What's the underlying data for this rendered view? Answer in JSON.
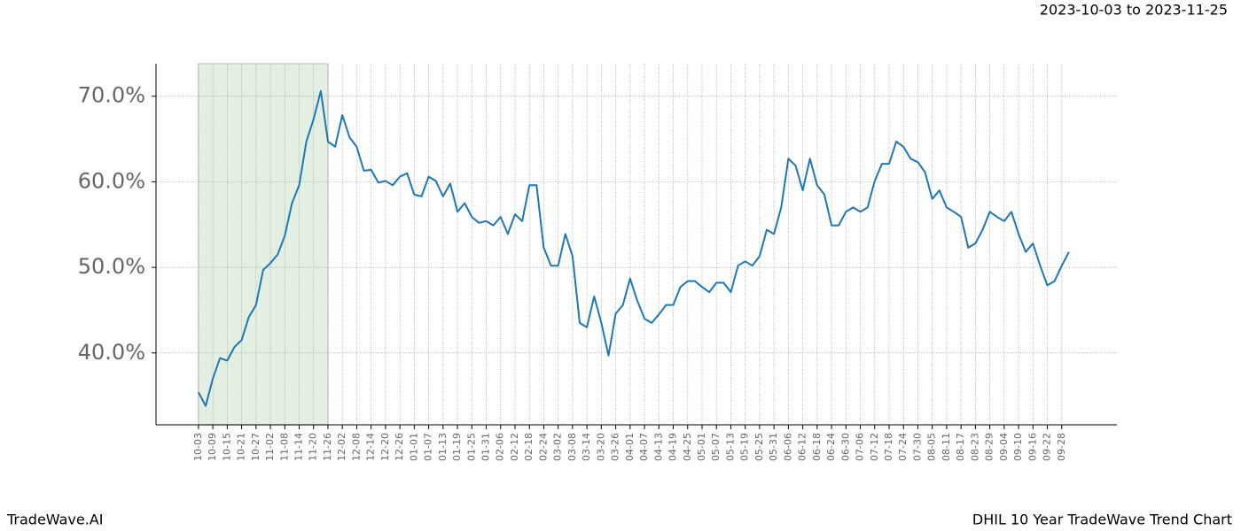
{
  "chart_data": {
    "type": "line",
    "title": "DHIL 10 Year TradeWave Trend Chart",
    "subtitle": "2023-10-03 to 2023-11-25",
    "brand": "TradeWave.AI",
    "color": "#1f77b4",
    "highlight_range": [
      0,
      54
    ],
    "highlight_color": "#e3f0e1",
    "grid": true,
    "xlim": [
      -17.7,
      383
    ],
    "ylim": [
      31.6,
      73.8
    ],
    "yticks": [
      {
        "value": 40,
        "label": "40.0%"
      },
      {
        "value": 50,
        "label": "50.0%"
      },
      {
        "value": 60,
        "label": "60.0%"
      },
      {
        "value": 70,
        "label": "70.0%"
      }
    ],
    "xticks": [
      {
        "value": 0,
        "label": "10-03"
      },
      {
        "value": 6,
        "label": "10-09"
      },
      {
        "value": 12,
        "label": "10-15"
      },
      {
        "value": 18,
        "label": "10-21"
      },
      {
        "value": 24,
        "label": "10-27"
      },
      {
        "value": 30,
        "label": "11-02"
      },
      {
        "value": 36,
        "label": "11-08"
      },
      {
        "value": 42,
        "label": "11-14"
      },
      {
        "value": 48,
        "label": "11-20"
      },
      {
        "value": 54,
        "label": "11-26"
      },
      {
        "value": 60,
        "label": "12-02"
      },
      {
        "value": 66,
        "label": "12-08"
      },
      {
        "value": 72,
        "label": "12-14"
      },
      {
        "value": 78,
        "label": "12-20"
      },
      {
        "value": 84,
        "label": "12-26"
      },
      {
        "value": 90,
        "label": "01-01"
      },
      {
        "value": 96,
        "label": "01-07"
      },
      {
        "value": 102,
        "label": "01-13"
      },
      {
        "value": 108,
        "label": "01-19"
      },
      {
        "value": 114,
        "label": "01-25"
      },
      {
        "value": 120,
        "label": "01-31"
      },
      {
        "value": 126,
        "label": "02-06"
      },
      {
        "value": 132,
        "label": "02-12"
      },
      {
        "value": 138,
        "label": "02-18"
      },
      {
        "value": 144,
        "label": "02-24"
      },
      {
        "value": 150,
        "label": "03-02"
      },
      {
        "value": 156,
        "label": "03-08"
      },
      {
        "value": 162,
        "label": "03-14"
      },
      {
        "value": 168,
        "label": "03-20"
      },
      {
        "value": 174,
        "label": "03-26"
      },
      {
        "value": 180,
        "label": "04-01"
      },
      {
        "value": 186,
        "label": "04-07"
      },
      {
        "value": 192,
        "label": "04-13"
      },
      {
        "value": 198,
        "label": "04-19"
      },
      {
        "value": 204,
        "label": "04-25"
      },
      {
        "value": 210,
        "label": "05-01"
      },
      {
        "value": 216,
        "label": "05-07"
      },
      {
        "value": 222,
        "label": "05-13"
      },
      {
        "value": 228,
        "label": "05-19"
      },
      {
        "value": 234,
        "label": "05-25"
      },
      {
        "value": 240,
        "label": "05-31"
      },
      {
        "value": 246,
        "label": "06-06"
      },
      {
        "value": 252,
        "label": "06-12"
      },
      {
        "value": 258,
        "label": "06-18"
      },
      {
        "value": 264,
        "label": "06-24"
      },
      {
        "value": 270,
        "label": "06-30"
      },
      {
        "value": 276,
        "label": "07-06"
      },
      {
        "value": 282,
        "label": "07-12"
      },
      {
        "value": 288,
        "label": "07-18"
      },
      {
        "value": 294,
        "label": "07-24"
      },
      {
        "value": 300,
        "label": "07-30"
      },
      {
        "value": 306,
        "label": "08-05"
      },
      {
        "value": 312,
        "label": "08-11"
      },
      {
        "value": 318,
        "label": "08-17"
      },
      {
        "value": 324,
        "label": "08-23"
      },
      {
        "value": 330,
        "label": "08-29"
      },
      {
        "value": 336,
        "label": "09-04"
      },
      {
        "value": 342,
        "label": "09-10"
      },
      {
        "value": 348,
        "label": "09-16"
      },
      {
        "value": 354,
        "label": "09-22"
      },
      {
        "value": 360,
        "label": "09-28"
      }
    ],
    "x": [
      0,
      3,
      6,
      9,
      12,
      15,
      18,
      21,
      24,
      27,
      30,
      33,
      36,
      39,
      42,
      45,
      48,
      51,
      54,
      57,
      60,
      63,
      66,
      69,
      72,
      75,
      78,
      81,
      84,
      87,
      90,
      93,
      96,
      99,
      102,
      105,
      108,
      111,
      114,
      117,
      120,
      123,
      126,
      129,
      132,
      135,
      138,
      141,
      144,
      147,
      150,
      153,
      156,
      159,
      162,
      165,
      168,
      171,
      174,
      177,
      180,
      183,
      186,
      189,
      192,
      195,
      198,
      201,
      204,
      207,
      210,
      213,
      216,
      219,
      222,
      225,
      228,
      231,
      234,
      237,
      240,
      243,
      246,
      249,
      252,
      255,
      258,
      261,
      264,
      267,
      270,
      273,
      276,
      279,
      282,
      285,
      288,
      291,
      294,
      297,
      300,
      303,
      306,
      309,
      312,
      315,
      318,
      321,
      324,
      327,
      330,
      333,
      336,
      339,
      342,
      345,
      348,
      351,
      354,
      357,
      360,
      363
    ],
    "values": [
      35.4,
      33.8,
      37.0,
      39.4,
      39.1,
      40.7,
      41.5,
      44.2,
      45.6,
      49.7,
      50.5,
      51.5,
      53.7,
      57.5,
      59.6,
      64.7,
      67.3,
      70.6,
      64.7,
      64.1,
      67.8,
      65.2,
      64.1,
      61.3,
      61.4,
      59.9,
      60.1,
      59.6,
      60.6,
      61.0,
      58.5,
      58.3,
      60.6,
      60.1,
      58.3,
      59.8,
      56.5,
      57.5,
      55.9,
      55.2,
      55.4,
      54.9,
      55.9,
      53.9,
      56.2,
      55.4,
      59.6,
      59.6,
      52.3,
      50.2,
      50.2,
      53.9,
      51.3,
      43.5,
      43.0,
      46.6,
      43.5,
      39.7,
      44.6,
      45.6,
      48.7,
      46.1,
      44.0,
      43.5,
      44.5,
      45.6,
      45.6,
      47.7,
      48.4,
      48.4,
      47.7,
      47.1,
      48.2,
      48.2,
      47.1,
      50.2,
      50.7,
      50.2,
      51.3,
      54.4,
      53.9,
      57.0,
      62.7,
      61.9,
      59.0,
      62.7,
      59.6,
      58.5,
      54.9,
      54.9,
      56.5,
      57.0,
      56.5,
      57.0,
      60.1,
      62.1,
      62.1,
      64.7,
      64.1,
      62.7,
      62.3,
      61.1,
      58.0,
      59.0,
      57.0,
      56.5,
      55.9,
      52.3,
      52.8,
      54.4,
      56.5,
      55.9,
      55.4,
      56.5,
      53.9,
      51.8,
      52.8,
      50.2,
      47.9,
      48.4,
      50.2,
      51.8
    ]
  }
}
